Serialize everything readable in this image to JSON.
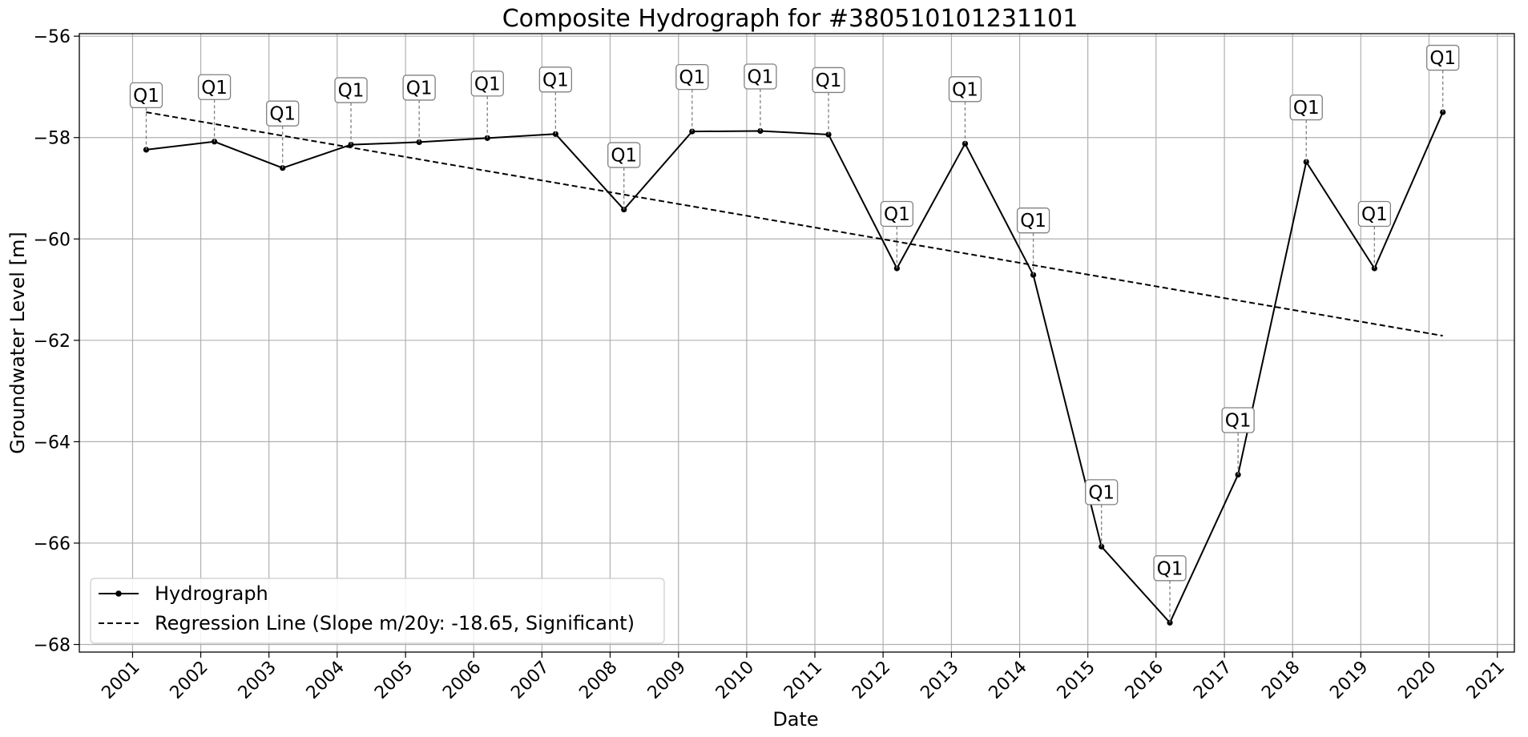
{
  "chart_data": {
    "type": "line",
    "title": "Composite Hydrograph for  #380510101231101",
    "xlabel": "Date",
    "ylabel": "Groundwater Level [m]",
    "x_ticks": [
      "2001",
      "2002",
      "2003",
      "2004",
      "2005",
      "2006",
      "2007",
      "2008",
      "2009",
      "2010",
      "2011",
      "2012",
      "2013",
      "2014",
      "2015",
      "2016",
      "2017",
      "2018",
      "2019",
      "2020",
      "2021"
    ],
    "y_ticks": [
      -56,
      -58,
      -60,
      -62,
      -64,
      -66,
      -68
    ],
    "ylim": [
      -68.15,
      -55.95
    ],
    "xlim": [
      "2000-03-22",
      "2021-04-02"
    ],
    "grid": true,
    "legend_position": "lower-left",
    "series": [
      {
        "name": "Hydrograph",
        "style": "solid line with point markers",
        "color": "#000000",
        "x": [
          "2001-03-15",
          "2002-03-15",
          "2003-03-15",
          "2004-03-15",
          "2005-03-15",
          "2006-03-15",
          "2007-03-15",
          "2008-03-15",
          "2009-03-15",
          "2010-03-15",
          "2011-03-15",
          "2012-03-15",
          "2013-03-15",
          "2014-03-15",
          "2015-03-15",
          "2016-03-15",
          "2017-03-15",
          "2018-03-15",
          "2019-03-15",
          "2020-03-15"
        ],
        "values": [
          -58.24,
          -58.08,
          -58.6,
          -58.14,
          -58.09,
          -58.01,
          -57.93,
          -59.42,
          -57.88,
          -57.87,
          -57.94,
          -60.58,
          -58.12,
          -60.71,
          -66.07,
          -67.57,
          -64.65,
          -58.48,
          -60.58,
          -57.5
        ],
        "annotations": [
          "Q1",
          "Q1",
          "Q1",
          "Q1",
          "Q1",
          "Q1",
          "Q1",
          "Q1",
          "Q1",
          "Q1",
          "Q1",
          "Q1",
          "Q1",
          "Q1",
          "Q1",
          "Q1",
          "Q1",
          "Q1",
          "Q1",
          "Q1"
        ]
      },
      {
        "name": "Regression Line (Slope m/20y: -18.65, Significant)",
        "style": "dashed",
        "color": "#000000",
        "x": [
          "2001-03-15",
          "2020-03-15"
        ],
        "values": [
          -57.5,
          -61.91
        ]
      }
    ]
  }
}
